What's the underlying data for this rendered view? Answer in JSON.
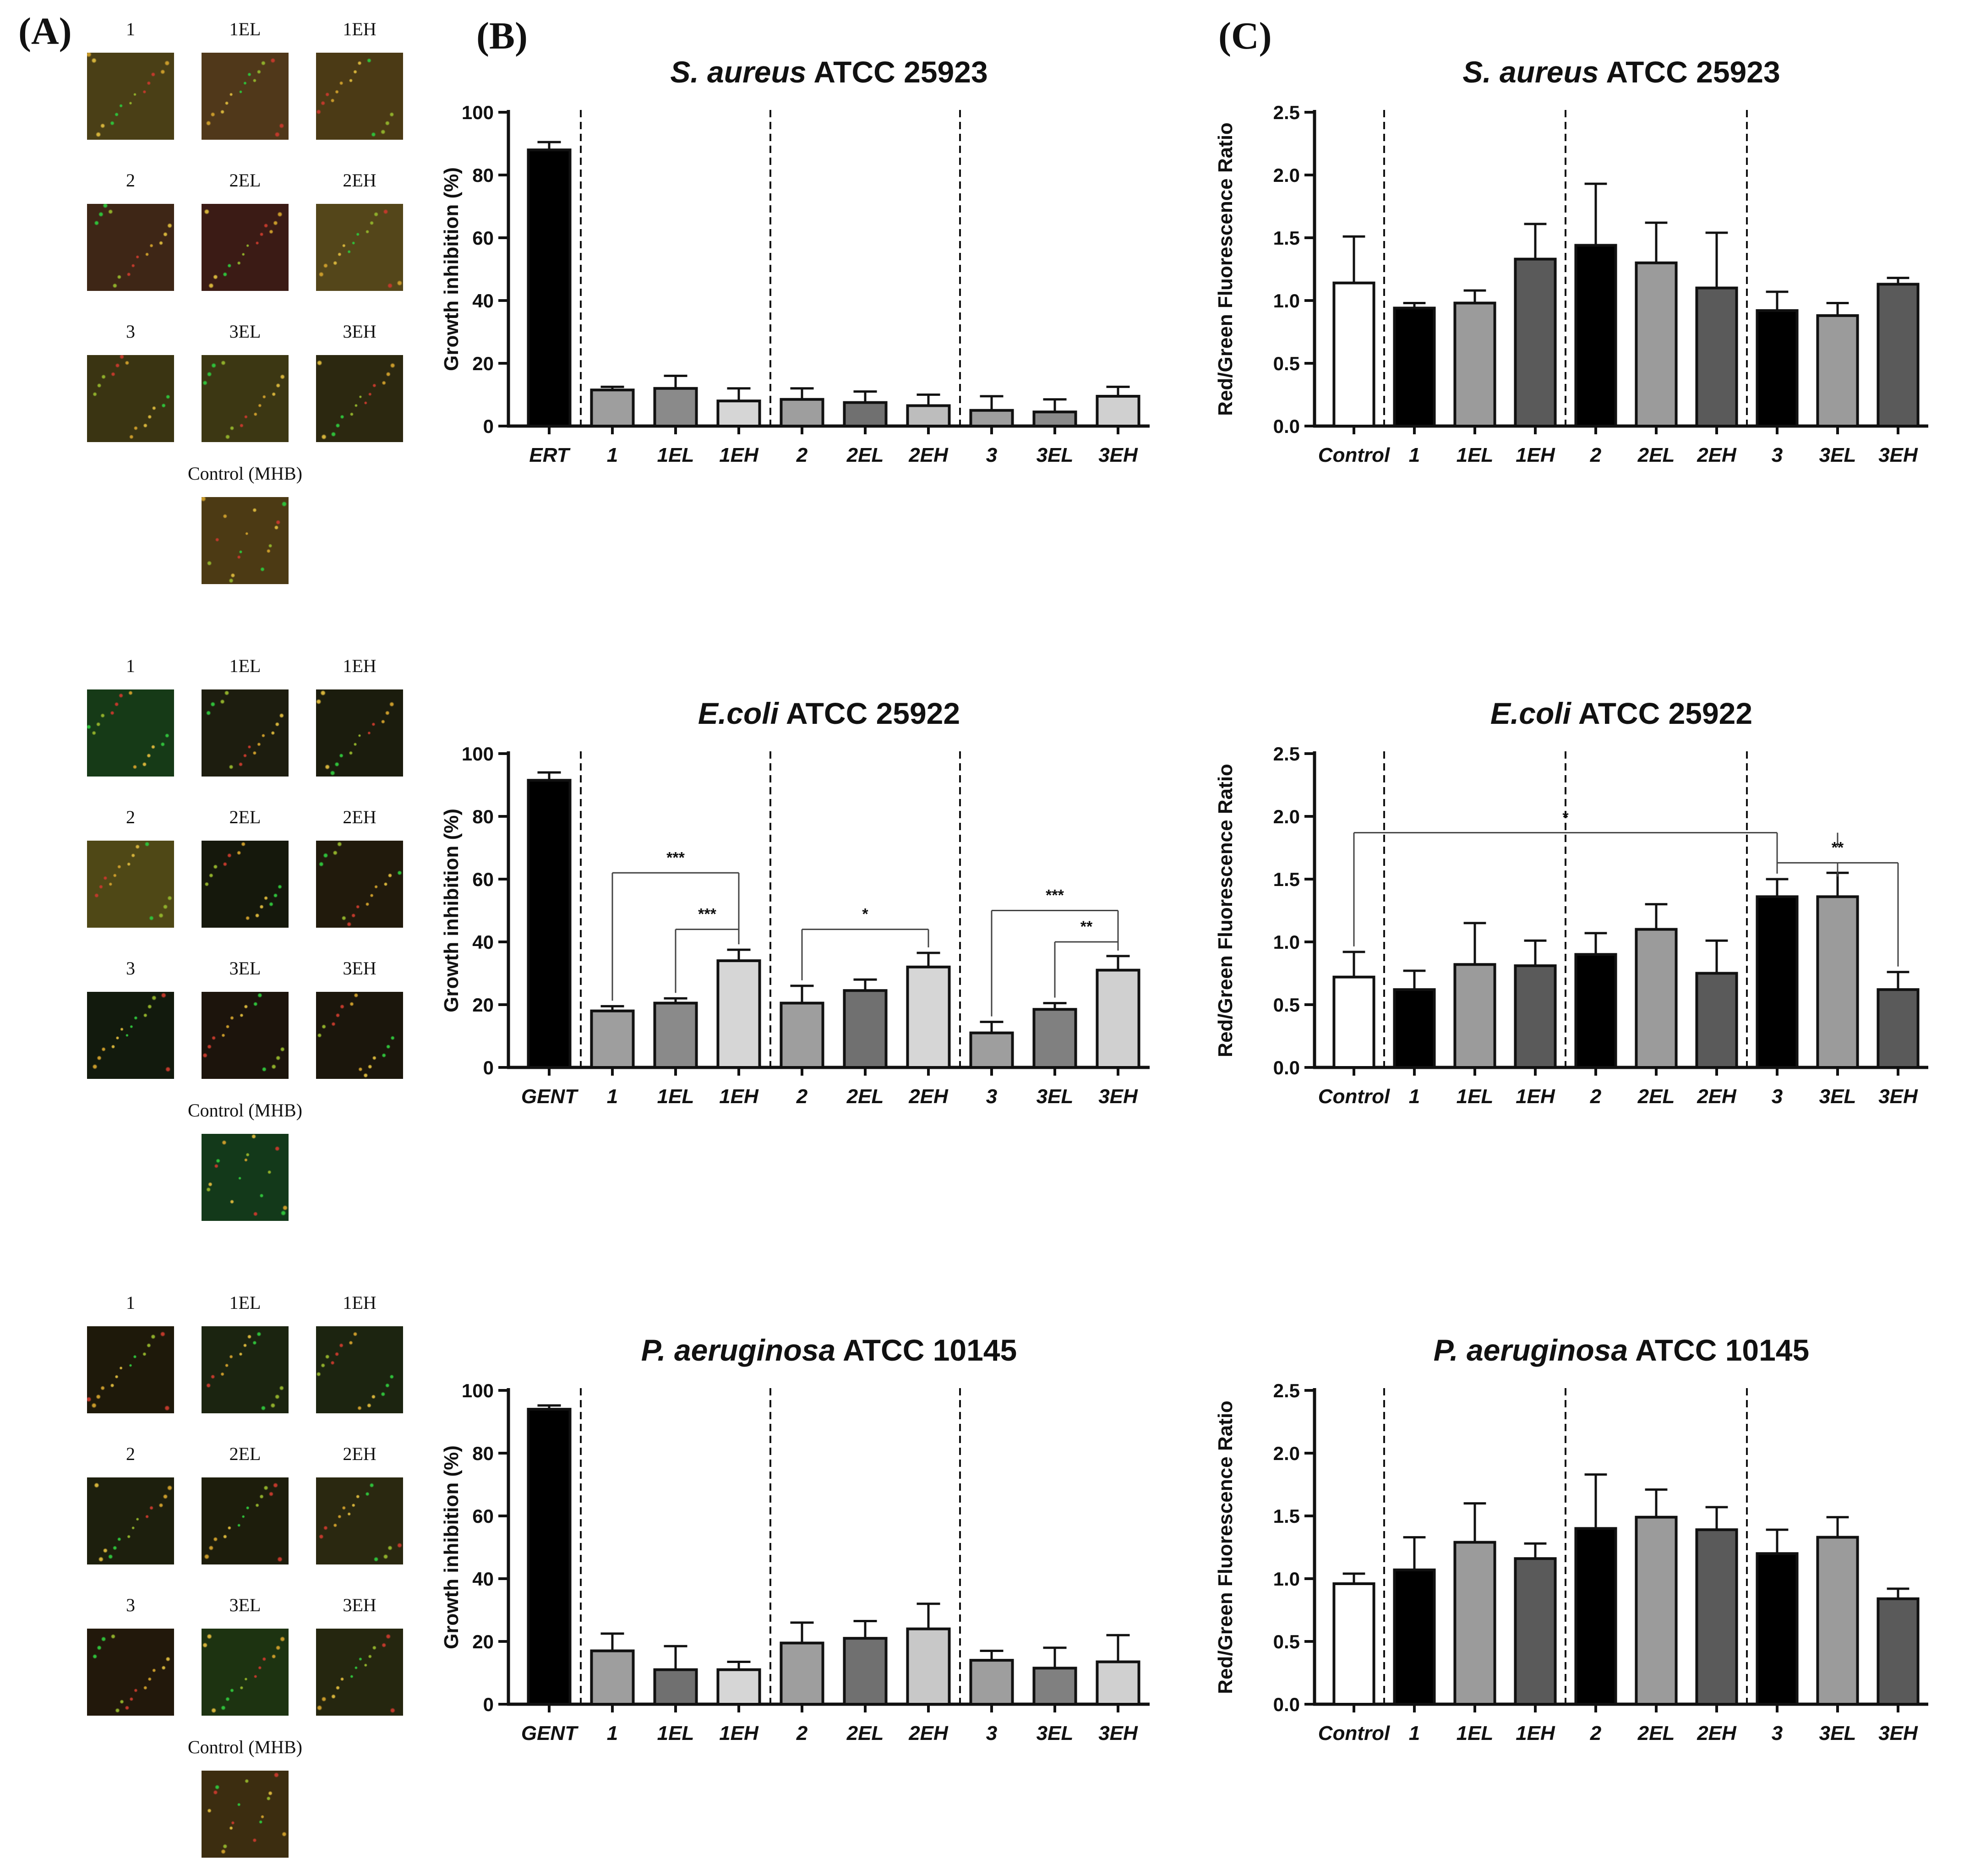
{
  "panel_labels": {
    "a": "(A)",
    "b": "(B)",
    "c": "(C)"
  },
  "micrographs": [
    {
      "rows": [
        {
          "labels": [
            "1",
            "1EL",
            "1EH"
          ],
          "tints": [
            "#4a3f16",
            "#50381a",
            "#4b3a15"
          ]
        },
        {
          "labels": [
            "2",
            "2EL",
            "2EH"
          ],
          "tints": [
            "#3e2616",
            "#3b1b15",
            "#54461a"
          ]
        },
        {
          "labels": [
            "3",
            "3EL",
            "3EH"
          ],
          "tints": [
            "#3a3412",
            "#3c3713",
            "#2c2810"
          ]
        }
      ],
      "control_label": "Control (MHB)",
      "control_tint": "#4c3a14"
    },
    {
      "rows": [
        {
          "labels": [
            "1",
            "1EL",
            "1EH"
          ],
          "tints": [
            "#163a17",
            "#1d1d0f",
            "#1b1c0d"
          ]
        },
        {
          "labels": [
            "2",
            "2EL",
            "2EH"
          ],
          "tints": [
            "#4f4816",
            "#15180c",
            "#211a0c"
          ]
        },
        {
          "labels": [
            "3",
            "3EL",
            "3EH"
          ],
          "tints": [
            "#121a0d",
            "#1c140c",
            "#1b160c"
          ]
        }
      ],
      "control_label": "Control (MHB)",
      "control_tint": "#13391a"
    },
    {
      "rows": [
        {
          "labels": [
            "1",
            "1EL",
            "1EH"
          ],
          "tints": [
            "#1e190a",
            "#1b2410",
            "#1c2410"
          ]
        },
        {
          "labels": [
            "2",
            "2EL",
            "2EH"
          ],
          "tints": [
            "#1d1f0d",
            "#1d1d0c",
            "#2a2810"
          ]
        },
        {
          "labels": [
            "3",
            "3EL",
            "3EH"
          ],
          "tints": [
            "#22180b",
            "#1d3311",
            "#25260f"
          ]
        }
      ],
      "control_label": "Control (MHB)",
      "control_tint": "#3c2d10"
    }
  ],
  "chart_data": [
    {
      "type": "bar",
      "panel": "B",
      "title_italic": "S. aureus",
      "title_rest": " ATCC 25923",
      "ylabel": "Growth inhibition (%)",
      "ylim": [
        0,
        100
      ],
      "yticks": [
        0,
        20,
        40,
        60,
        80,
        100
      ],
      "categories": [
        "ERT",
        "1",
        "1EL",
        "1EH",
        "2",
        "2EL",
        "2EH",
        "3",
        "3EL",
        "3EH"
      ],
      "values": [
        88,
        11.5,
        12,
        8,
        8.5,
        7.5,
        6.5,
        5,
        4.5,
        9.5
      ],
      "errors": [
        2.5,
        1,
        4,
        4,
        3.5,
        3.5,
        3.5,
        4.5,
        4,
        3
      ],
      "colors": [
        "#000000",
        "#9e9e9e",
        "#8a8a8a",
        "#d6d6d6",
        "#9e9e9e",
        "#707070",
        "#bdbdbd",
        "#9e9e9e",
        "#8a8a8a",
        "#d0d0d0"
      ],
      "separators_after": [
        1,
        4,
        7
      ],
      "brackets": []
    },
    {
      "type": "bar",
      "panel": "C",
      "title_italic": "S. aureus",
      "title_rest": " ATCC 25923",
      "ylabel": "Red/Green Fluorescence Ratio",
      "ylim": [
        0,
        2.5
      ],
      "yticks": [
        0.0,
        0.5,
        1.0,
        1.5,
        2.0,
        2.5
      ],
      "categories": [
        "Control",
        "1",
        "1EL",
        "1EH",
        "2",
        "2EL",
        "2EH",
        "3",
        "3EL",
        "3EH"
      ],
      "values": [
        1.14,
        0.94,
        0.98,
        1.33,
        1.44,
        1.3,
        1.1,
        0.92,
        0.88,
        1.13
      ],
      "errors": [
        0.37,
        0.04,
        0.1,
        0.28,
        0.49,
        0.32,
        0.44,
        0.15,
        0.1,
        0.05
      ],
      "colors": [
        "#ffffff",
        "#000000",
        "#9b9b9b",
        "#5a5a5a",
        "#000000",
        "#9b9b9b",
        "#5a5a5a",
        "#000000",
        "#9b9b9b",
        "#5a5a5a"
      ],
      "separators_after": [
        1,
        4,
        7
      ],
      "brackets": []
    },
    {
      "type": "bar",
      "panel": "B",
      "title_italic": "E.coli",
      "title_rest": " ATCC 25922",
      "ylabel": "Growth inhibition (%)",
      "ylim": [
        0,
        100
      ],
      "yticks": [
        0,
        20,
        40,
        60,
        80,
        100
      ],
      "categories": [
        "GENT",
        "1",
        "1EL",
        "1EH",
        "2",
        "2EL",
        "2EH",
        "3",
        "3EL",
        "3EH"
      ],
      "values": [
        91.5,
        18,
        20.5,
        34,
        20.5,
        24.5,
        32,
        11,
        18.5,
        31
      ],
      "errors": [
        2.5,
        1.5,
        1.5,
        3.5,
        5.5,
        3.5,
        4.5,
        3.5,
        2,
        4.5
      ],
      "colors": [
        "#000000",
        "#9e9e9e",
        "#8a8a8a",
        "#d6d6d6",
        "#9e9e9e",
        "#707070",
        "#d6d6d6",
        "#9e9e9e",
        "#808080",
        "#d0d0d0"
      ],
      "separators_after": [
        1,
        4,
        7
      ],
      "brackets": [
        {
          "from": 1,
          "to": 3,
          "y": 62,
          "label": "***"
        },
        {
          "from": 2,
          "to": 3,
          "y": 44,
          "label": "***"
        },
        {
          "from": 4,
          "to": 6,
          "y": 44,
          "label": "*"
        },
        {
          "from": 7,
          "to": 9,
          "y": 50,
          "label": "***"
        },
        {
          "from": 8,
          "to": 9,
          "y": 40,
          "label": "**"
        }
      ]
    },
    {
      "type": "bar",
      "panel": "C",
      "title_italic": "E.coli",
      "title_rest": " ATCC 25922",
      "ylabel": "Red/Green Fluorescence Ratio",
      "ylim": [
        0,
        2.5
      ],
      "yticks": [
        0.0,
        0.5,
        1.0,
        1.5,
        2.0,
        2.5
      ],
      "categories": [
        "Control",
        "1",
        "1EL",
        "1EH",
        "2",
        "2EL",
        "2EH",
        "3",
        "3EL",
        "3EH"
      ],
      "values": [
        0.72,
        0.62,
        0.82,
        0.81,
        0.9,
        1.1,
        0.75,
        1.36,
        1.36,
        0.62
      ],
      "errors": [
        0.2,
        0.15,
        0.33,
        0.2,
        0.17,
        0.2,
        0.26,
        0.14,
        0.19,
        0.14
      ],
      "colors": [
        "#ffffff",
        "#000000",
        "#9b9b9b",
        "#5a5a5a",
        "#000000",
        "#9b9b9b",
        "#5a5a5a",
        "#000000",
        "#9b9b9b",
        "#5a5a5a"
      ],
      "separators_after": [
        1,
        4,
        7
      ],
      "brackets": [
        {
          "from": 0,
          "to": 7,
          "to2": 8,
          "y": 1.87,
          "label": "*"
        },
        {
          "from": 7,
          "to": 9,
          "to2": 8,
          "y": 1.63,
          "label": "**"
        }
      ]
    },
    {
      "type": "bar",
      "panel": "B",
      "title_italic": "P. aeruginosa",
      "title_rest": " ATCC 10145",
      "ylabel": "Growth inhibition (%)",
      "ylim": [
        0,
        100
      ],
      "yticks": [
        0,
        20,
        40,
        60,
        80,
        100
      ],
      "categories": [
        "GENT",
        "1",
        "1EL",
        "1EH",
        "2",
        "2EL",
        "2EH",
        "3",
        "3EL",
        "3EH"
      ],
      "values": [
        94,
        17,
        11,
        11,
        19.5,
        21,
        24,
        14,
        11.5,
        13.5
      ],
      "errors": [
        1.2,
        5.5,
        7.5,
        2.5,
        6.5,
        5.5,
        8,
        3,
        6.5,
        8.5
      ],
      "colors": [
        "#000000",
        "#9e9e9e",
        "#707070",
        "#d6d6d6",
        "#9e9e9e",
        "#707070",
        "#c8c8c8",
        "#9e9e9e",
        "#808080",
        "#d0d0d0"
      ],
      "separators_after": [
        1,
        4,
        7
      ],
      "brackets": []
    },
    {
      "type": "bar",
      "panel": "C",
      "title_italic": "P. aeruginosa",
      "title_rest": " ATCC 10145",
      "ylabel": "Red/Green Fluorescence Ratio",
      "ylim": [
        0,
        2.5
      ],
      "yticks": [
        0.0,
        0.5,
        1.0,
        1.5,
        2.0,
        2.5
      ],
      "categories": [
        "Control",
        "1",
        "1EL",
        "1EH",
        "2",
        "2EL",
        "2EH",
        "3",
        "3EL",
        "3EH"
      ],
      "values": [
        0.96,
        1.07,
        1.29,
        1.16,
        1.4,
        1.49,
        1.39,
        1.2,
        1.33,
        0.84
      ],
      "errors": [
        0.08,
        0.26,
        0.31,
        0.12,
        0.43,
        0.22,
        0.18,
        0.19,
        0.16,
        0.08
      ],
      "colors": [
        "#ffffff",
        "#000000",
        "#9b9b9b",
        "#5a5a5a",
        "#000000",
        "#9b9b9b",
        "#5a5a5a",
        "#000000",
        "#9b9b9b",
        "#5a5a5a"
      ],
      "separators_after": [
        1,
        4,
        7
      ],
      "brackets": []
    }
  ]
}
